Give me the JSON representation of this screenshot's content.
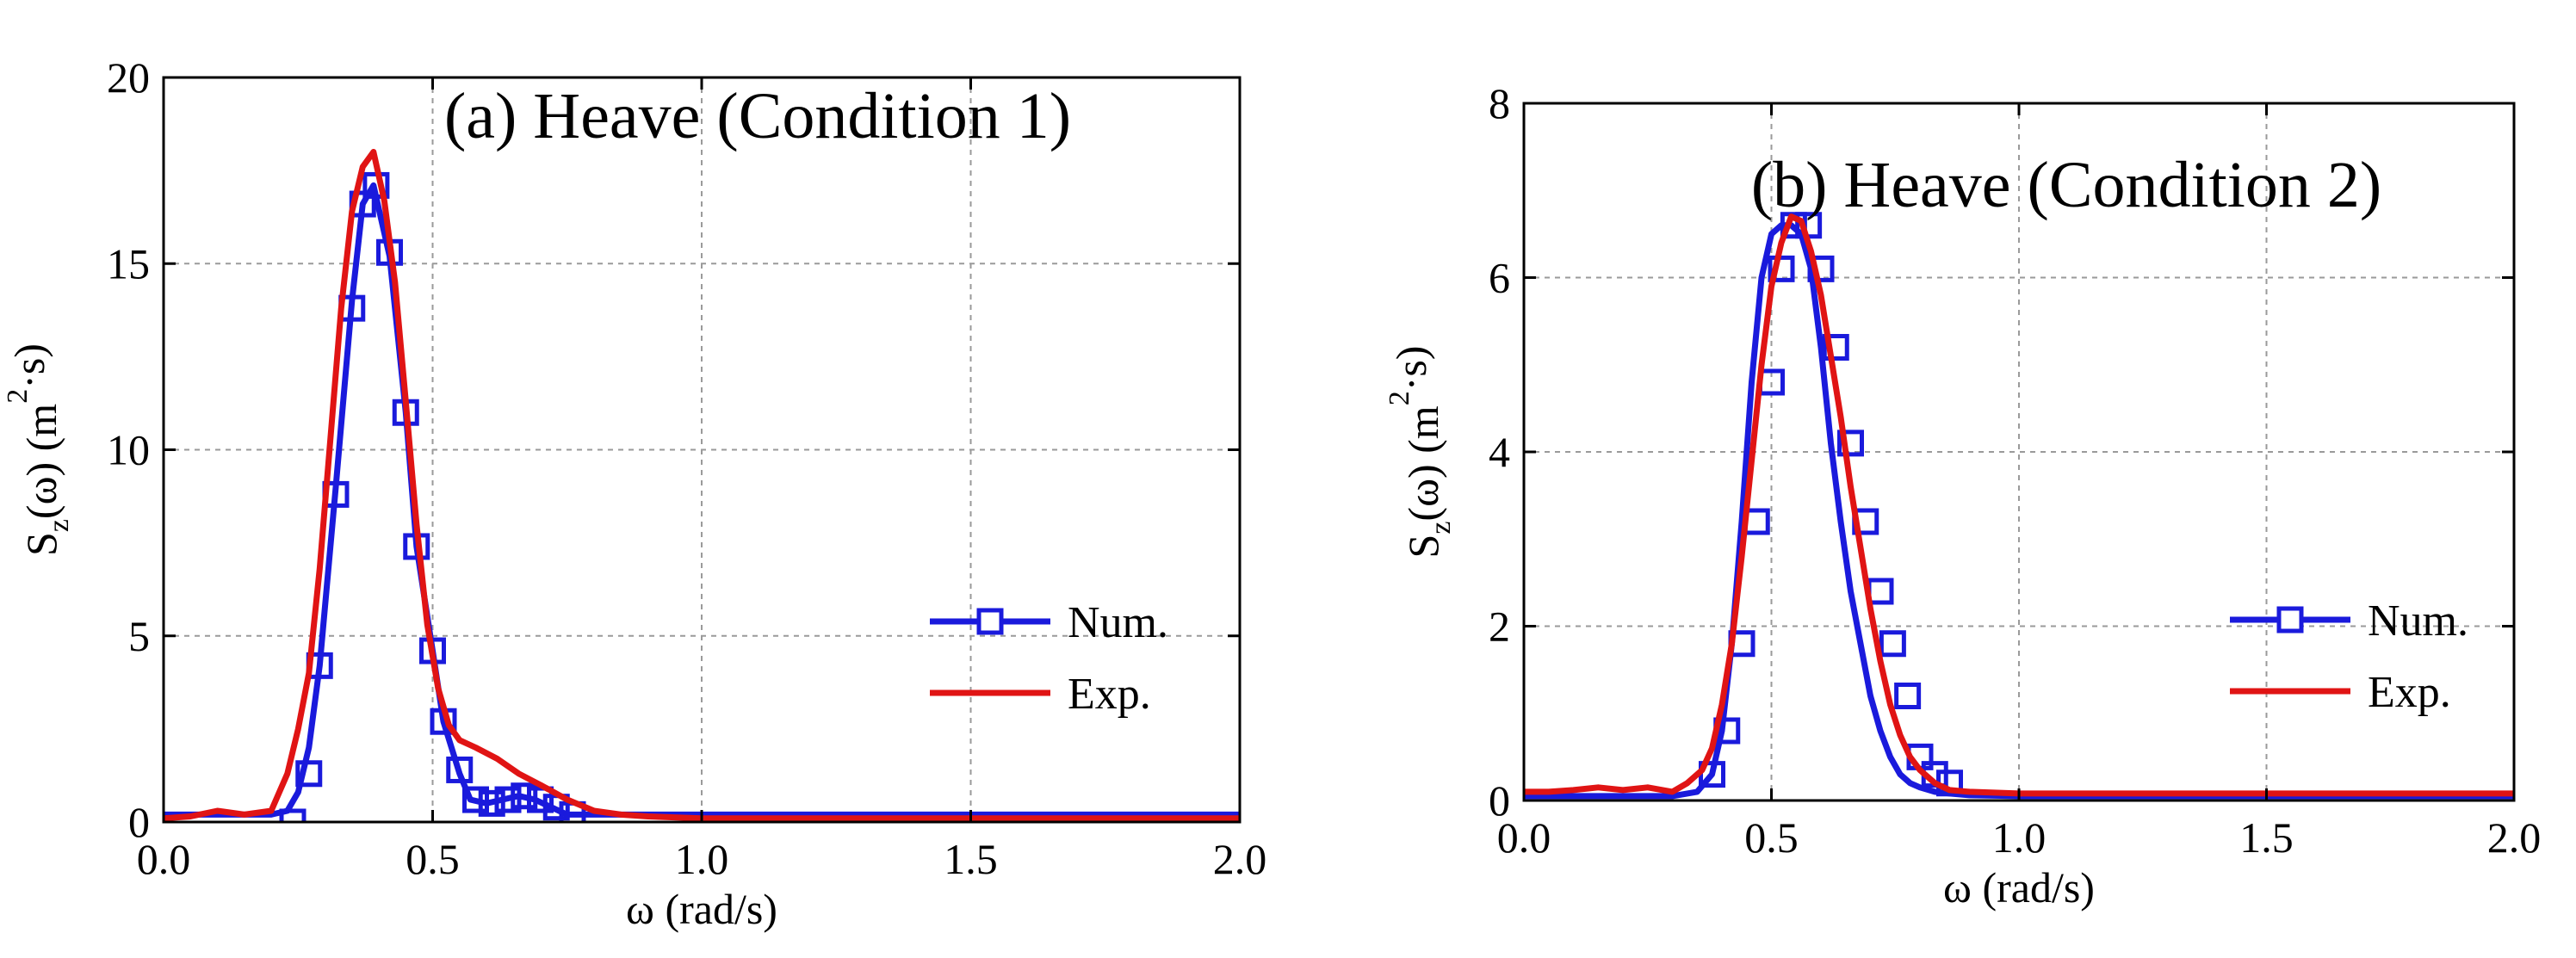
{
  "chart_data": [
    {
      "type": "line",
      "title": "(a) Heave (Condition 1)",
      "xlabel": "ω (rad/s)",
      "ylabel": {
        "base": "S",
        "sub": "z",
        "rest1": "(ω) (m",
        "sup": "2",
        "rest2": "·s)"
      },
      "xlim": [
        0,
        2
      ],
      "ylim": [
        0,
        20
      ],
      "xticks": [
        0.0,
        0.5,
        1.0,
        1.5,
        2.0
      ],
      "xtick_labels": [
        "0.0",
        "0.5",
        "1.0",
        "1.5",
        "2.0"
      ],
      "yticks": [
        0,
        5,
        10,
        15,
        20
      ],
      "ytick_labels": [
        "0",
        "5",
        "10",
        "15",
        "20"
      ],
      "grid": true,
      "legend_position": "center-right",
      "series": [
        {
          "name": "Num.",
          "color": "#1a1adc",
          "marker": "square",
          "x": [
            0.0,
            0.05,
            0.1,
            0.15,
            0.2,
            0.23,
            0.25,
            0.27,
            0.29,
            0.32,
            0.35,
            0.37,
            0.39,
            0.42,
            0.45,
            0.47,
            0.5,
            0.52,
            0.55,
            0.57,
            0.6,
            0.63,
            0.66,
            0.69,
            0.72,
            0.75,
            0.8,
            0.9,
            1.0,
            1.2,
            1.5,
            2.0
          ],
          "y": [
            0.2,
            0.2,
            0.2,
            0.2,
            0.2,
            0.3,
            0.8,
            2.0,
            4.2,
            9.0,
            14.0,
            16.6,
            17.1,
            15.2,
            11.0,
            7.4,
            4.6,
            2.7,
            1.3,
            0.6,
            0.5,
            0.6,
            0.7,
            0.6,
            0.4,
            0.2,
            0.2,
            0.2,
            0.2,
            0.2,
            0.2,
            0.2
          ],
          "marker_x": [
            0.24,
            0.27,
            0.29,
            0.32,
            0.35,
            0.37,
            0.395,
            0.42,
            0.45,
            0.47,
            0.5,
            0.52,
            0.55,
            0.58,
            0.61,
            0.64,
            0.67,
            0.7,
            0.73,
            0.76
          ],
          "marker_y": [
            0.0,
            1.3,
            4.2,
            8.8,
            13.8,
            16.6,
            17.1,
            15.3,
            11.0,
            7.4,
            4.6,
            2.7,
            1.4,
            0.6,
            0.5,
            0.6,
            0.7,
            0.6,
            0.4,
            0.2
          ]
        },
        {
          "name": "Exp.",
          "color": "#e01414",
          "marker": "none",
          "x": [
            0.0,
            0.05,
            0.1,
            0.15,
            0.2,
            0.23,
            0.25,
            0.27,
            0.29,
            0.31,
            0.33,
            0.35,
            0.37,
            0.39,
            0.41,
            0.43,
            0.45,
            0.47,
            0.49,
            0.51,
            0.53,
            0.55,
            0.58,
            0.62,
            0.66,
            0.7,
            0.75,
            0.8,
            0.85,
            0.9,
            1.0,
            1.2,
            1.5,
            2.0
          ],
          "y": [
            0.1,
            0.15,
            0.3,
            0.2,
            0.3,
            1.3,
            2.5,
            4.0,
            6.8,
            10.3,
            13.8,
            16.4,
            17.6,
            18.0,
            16.7,
            14.5,
            11.3,
            8.0,
            5.3,
            3.6,
            2.6,
            2.2,
            2.0,
            1.7,
            1.3,
            1.0,
            0.6,
            0.3,
            0.2,
            0.15,
            0.1,
            0.1,
            0.1,
            0.1
          ]
        }
      ]
    },
    {
      "type": "line",
      "title": "(b) Heave (Condition 2)",
      "xlabel": "ω (rad/s)",
      "ylabel": {
        "base": "S",
        "sub": "z",
        "rest1": "(ω) (m",
        "sup": "2",
        "rest2": "·s)"
      },
      "xlim": [
        0,
        2
      ],
      "ylim": [
        0,
        8
      ],
      "xticks": [
        0.0,
        0.5,
        1.0,
        1.5,
        2.0
      ],
      "xtick_labels": [
        "0.0",
        "0.5",
        "1.0",
        "1.5",
        "2.0"
      ],
      "yticks": [
        0,
        2,
        4,
        6,
        8
      ],
      "ytick_labels": [
        "0",
        "2",
        "4",
        "6",
        "8"
      ],
      "grid": true,
      "legend_position": "center-right",
      "series": [
        {
          "name": "Num.",
          "color": "#1a1adc",
          "marker": "square",
          "x": [
            0.0,
            0.1,
            0.2,
            0.3,
            0.35,
            0.38,
            0.4,
            0.42,
            0.44,
            0.46,
            0.48,
            0.5,
            0.52,
            0.54,
            0.56,
            0.58,
            0.6,
            0.62,
            0.64,
            0.66,
            0.68,
            0.7,
            0.72,
            0.74,
            0.76,
            0.78,
            0.8,
            0.83,
            0.86,
            0.9,
            1.0,
            1.2,
            1.5,
            2.0
          ],
          "y": [
            0.05,
            0.05,
            0.05,
            0.05,
            0.1,
            0.3,
            0.8,
            1.8,
            3.2,
            4.8,
            6.0,
            6.5,
            6.6,
            6.6,
            6.5,
            6.1,
            5.2,
            4.1,
            3.2,
            2.4,
            1.8,
            1.2,
            0.8,
            0.5,
            0.3,
            0.2,
            0.15,
            0.1,
            0.08,
            0.06,
            0.05,
            0.05,
            0.05,
            0.05
          ],
          "marker_x": [
            0.38,
            0.41,
            0.44,
            0.47,
            0.5,
            0.52,
            0.545,
            0.575,
            0.6,
            0.63,
            0.66,
            0.69,
            0.72,
            0.745,
            0.775,
            0.8,
            0.83,
            0.86
          ],
          "marker_y": [
            0.3,
            0.8,
            1.8,
            3.2,
            4.8,
            6.1,
            6.6,
            6.6,
            6.1,
            5.2,
            4.1,
            3.2,
            2.4,
            1.8,
            1.2,
            0.5,
            0.3,
            0.2
          ]
        },
        {
          "name": "Exp.",
          "color": "#e01414",
          "marker": "none",
          "x": [
            0.0,
            0.05,
            0.1,
            0.15,
            0.2,
            0.25,
            0.3,
            0.33,
            0.36,
            0.38,
            0.4,
            0.42,
            0.44,
            0.46,
            0.48,
            0.5,
            0.52,
            0.54,
            0.56,
            0.58,
            0.6,
            0.62,
            0.64,
            0.66,
            0.68,
            0.7,
            0.72,
            0.74,
            0.76,
            0.78,
            0.8,
            0.83,
            0.86,
            0.9,
            1.0,
            1.2,
            1.5,
            2.0
          ],
          "y": [
            0.1,
            0.1,
            0.12,
            0.15,
            0.12,
            0.15,
            0.1,
            0.2,
            0.35,
            0.6,
            1.1,
            1.8,
            2.8,
            3.9,
            5.0,
            5.9,
            6.4,
            6.7,
            6.65,
            6.3,
            5.8,
            5.1,
            4.4,
            3.6,
            2.9,
            2.2,
            1.6,
            1.1,
            0.75,
            0.5,
            0.35,
            0.2,
            0.12,
            0.1,
            0.08,
            0.08,
            0.08,
            0.08
          ]
        }
      ]
    }
  ]
}
